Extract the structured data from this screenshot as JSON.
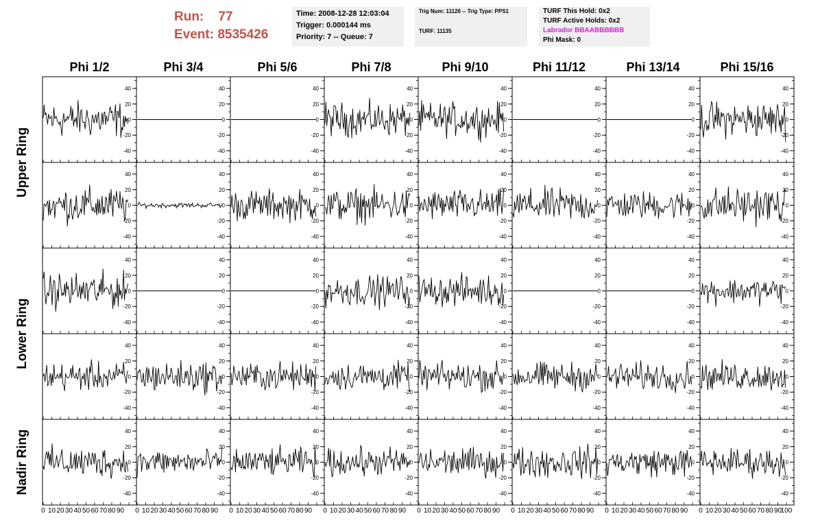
{
  "header": {
    "run_label": "Run:",
    "run_value": "77",
    "event_label": "Event:",
    "event_value": "8535426",
    "time": "Time: 2008-12-28 12:03:04",
    "trigger": "Trigger: 0.000144 ms",
    "priority": "Priority: 7 -- Queue: 7",
    "trig_num": "Trig Num: 11126 -- Trig Type: PPS1",
    "turf": "TURF: 11135",
    "turf_hold": "TURF This Hold: 0x2",
    "turf_active": "TURF Active Holds: 0x2",
    "labrador": "Labrador BBAABBBBBB",
    "phi_mask": "Phi Mask: 0"
  },
  "colors": {
    "run_text": "#c8514a",
    "labrador": "#e020e0",
    "info_bg": "#f0f0f0"
  },
  "chart_data": {
    "type": "line",
    "columns": [
      "Phi 1/2",
      "Phi 3/4",
      "Phi 5/6",
      "Phi 7/8",
      "Phi 9/10",
      "Phi 11/12",
      "Phi 13/14",
      "Phi 15/16"
    ],
    "row_labels": [
      "Upper Ring",
      "Lower Ring",
      "Nadir Ring"
    ],
    "rows_per_group": [
      2,
      2,
      1
    ],
    "ylim": [
      -55,
      55
    ],
    "yticks": [
      "40",
      "20",
      "0",
      "-20",
      "-40"
    ],
    "xlim": [
      0,
      100
    ],
    "xticks": [
      "0",
      "10",
      "20",
      "30",
      "40",
      "50",
      "60",
      "70",
      "80",
      "90",
      "100"
    ],
    "n_samples": 96,
    "amplitudes": [
      [
        14,
        0,
        0,
        13,
        13,
        0,
        0,
        14
      ],
      [
        14,
        2,
        12,
        13,
        12,
        13,
        11,
        14
      ],
      [
        14,
        0,
        0,
        12,
        12,
        0,
        0,
        10
      ],
      [
        11,
        12,
        11,
        11,
        11,
        11,
        11,
        11
      ],
      [
        12,
        10,
        11,
        11,
        11,
        12,
        11,
        11
      ]
    ]
  }
}
